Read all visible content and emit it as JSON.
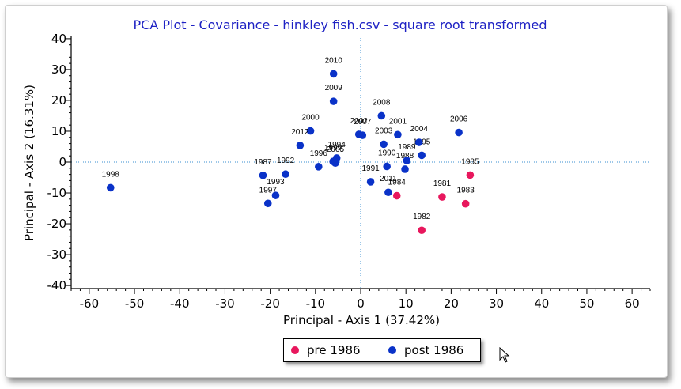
{
  "chart_data": {
    "type": "scatter",
    "title": "PCA Plot - Covariance - hinkley fish.csv - square root transformed",
    "xlabel": "Principal - Axis 1 (37.42%)",
    "ylabel": "Principal - Axis 2 (16.31%)",
    "xlim": [
      -64,
      64
    ],
    "ylim": [
      -41,
      41
    ],
    "xticks": [
      -60,
      -50,
      -40,
      -30,
      -20,
      -10,
      0,
      10,
      20,
      30,
      40,
      50,
      60
    ],
    "yticks": [
      -40,
      -30,
      -20,
      -10,
      0,
      10,
      20,
      30,
      40
    ],
    "grid": false,
    "reference_lines": "x=0, y=0 dotted",
    "legend_position": "bottom-center",
    "series": [
      {
        "name": "pre 1986",
        "color": "#e8175d",
        "points": [
          {
            "label": "1981",
            "x": 18.0,
            "y": -11.3
          },
          {
            "label": "1982",
            "x": 13.5,
            "y": -22.1
          },
          {
            "label": "1983",
            "x": 23.2,
            "y": -13.5
          },
          {
            "label": "1984",
            "x": 8.0,
            "y": -10.9
          },
          {
            "label": "1985",
            "x": 24.2,
            "y": -4.2
          }
        ]
      },
      {
        "name": "post 1986",
        "color": "#0a32c8",
        "points": [
          {
            "label": "1987",
            "x": -21.6,
            "y": -4.3
          },
          {
            "label": "1988",
            "x": 9.8,
            "y": -2.3
          },
          {
            "label": "1989",
            "x": 10.2,
            "y": 0.5
          },
          {
            "label": "1990",
            "x": 5.8,
            "y": -1.4
          },
          {
            "label": "1991",
            "x": 2.2,
            "y": -6.4
          },
          {
            "label": "1992",
            "x": -16.6,
            "y": -3.9
          },
          {
            "label": "1993",
            "x": -18.8,
            "y": -10.8
          },
          {
            "label": "1994",
            "x": -5.3,
            "y": 1.3
          },
          {
            "label": "1995",
            "x": 13.5,
            "y": 2.2
          },
          {
            "label": "1996",
            "x": -9.3,
            "y": -1.5
          },
          {
            "label": "1997",
            "x": -20.5,
            "y": -13.4
          },
          {
            "label": "1998",
            "x": -55.3,
            "y": -8.3
          },
          {
            "label": "1999",
            "x": -6.1,
            "y": 0.2
          },
          {
            "label": "2000",
            "x": -11.1,
            "y": 10.1
          },
          {
            "label": "2001",
            "x": 8.2,
            "y": 8.9
          },
          {
            "label": "2002",
            "x": -0.4,
            "y": 9.0
          },
          {
            "label": "2003",
            "x": 5.1,
            "y": 5.8
          },
          {
            "label": "2004",
            "x": 12.9,
            "y": 6.4
          },
          {
            "label": "2005",
            "x": -5.6,
            "y": -0.3
          },
          {
            "label": "2006",
            "x": 21.7,
            "y": 9.6
          },
          {
            "label": "2007",
            "x": 0.4,
            "y": 8.7
          },
          {
            "label": "2008",
            "x": 4.6,
            "y": 15.0
          },
          {
            "label": "2009",
            "x": -6.0,
            "y": 19.7
          },
          {
            "label": "2010",
            "x": -6.0,
            "y": 28.6
          },
          {
            "label": "2011",
            "x": 6.1,
            "y": -9.8
          },
          {
            "label": "2012",
            "x": -13.4,
            "y": 5.4
          }
        ]
      }
    ]
  },
  "cursor_icon": "mouse-pointer-icon"
}
